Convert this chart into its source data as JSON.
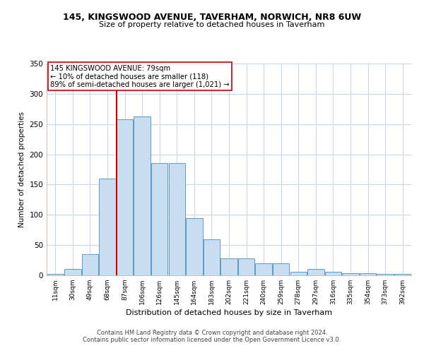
{
  "title1": "145, KINGSWOOD AVENUE, TAVERHAM, NORWICH, NR8 6UW",
  "title2": "Size of property relative to detached houses in Taverham",
  "xlabel": "Distribution of detached houses by size in Taverham",
  "ylabel": "Number of detached properties",
  "categories": [
    "11sqm",
    "30sqm",
    "49sqm",
    "68sqm",
    "87sqm",
    "106sqm",
    "126sqm",
    "145sqm",
    "164sqm",
    "183sqm",
    "202sqm",
    "221sqm",
    "240sqm",
    "259sqm",
    "278sqm",
    "297sqm",
    "316sqm",
    "335sqm",
    "354sqm",
    "373sqm",
    "392sqm"
  ],
  "values": [
    2,
    10,
    35,
    160,
    258,
    263,
    185,
    185,
    95,
    60,
    28,
    28,
    20,
    20,
    6,
    10,
    6,
    4,
    4,
    2,
    2
  ],
  "bar_color": "#c9ddf0",
  "bar_edge_color": "#5a9bc8",
  "vline_color": "#cc0000",
  "annotation_text": "145 KINGSWOOD AVENUE: 79sqm\n← 10% of detached houses are smaller (118)\n89% of semi-detached houses are larger (1,021) →",
  "annotation_box_color": "#ffffff",
  "annotation_box_edge_color": "#cc0000",
  "ylim": [
    0,
    350
  ],
  "yticks": [
    0,
    50,
    100,
    150,
    200,
    250,
    300,
    350
  ],
  "bg_color": "#ffffff",
  "grid_color": "#c8d8e8",
  "footer1": "Contains HM Land Registry data © Crown copyright and database right 2024.",
  "footer2": "Contains public sector information licensed under the Open Government Licence v3.0."
}
